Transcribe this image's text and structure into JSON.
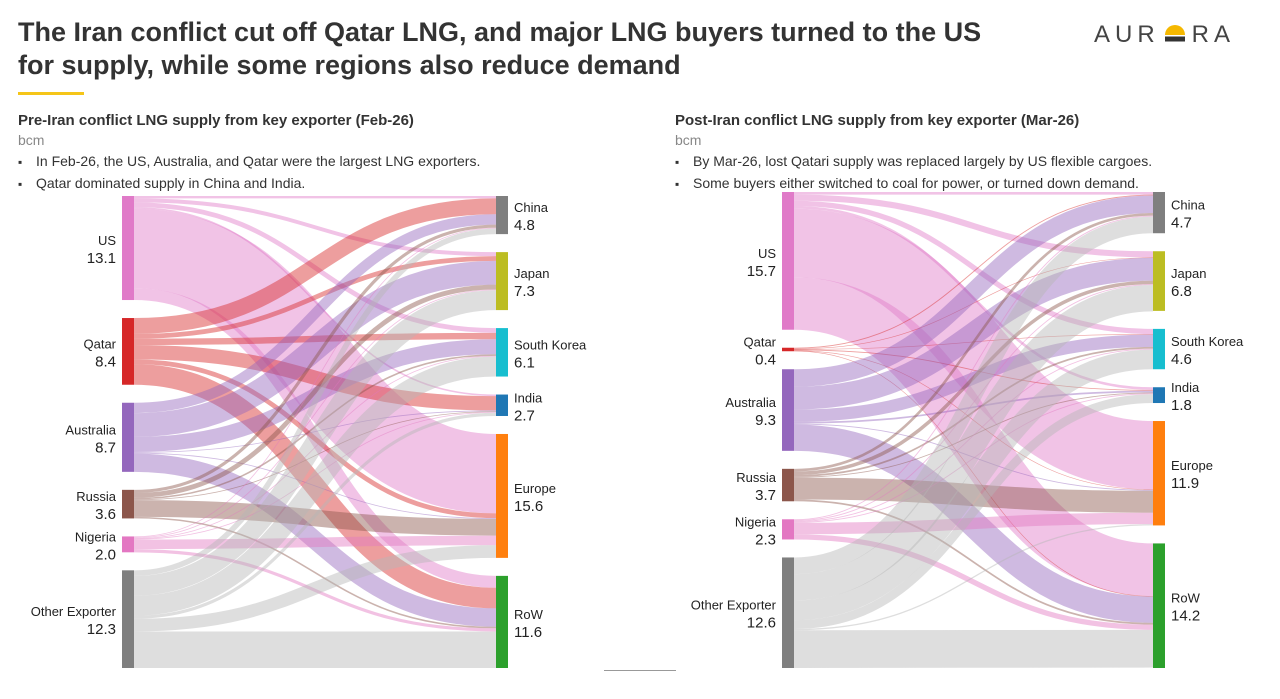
{
  "title": "The Iran conflict cut off Qatar LNG, and major LNG buyers turned to the US for supply, while some regions also reduce demand",
  "logo": {
    "letters_left": "AUR",
    "letters_right": "RA",
    "colors": {
      "sun": "#f5b800",
      "base": "#333333"
    }
  },
  "colors": {
    "US": "#e07ac8",
    "Qatar": "#d62728",
    "Australia": "#9467bd",
    "Russia": "#8c564b",
    "Nigeria": "#e377c2",
    "Other Exporter": "#7f7f7f",
    "China": "#7f7f7f",
    "Japan": "#bcbd22",
    "South Korea": "#17becf",
    "India": "#1f77b4",
    "Europe": "#ff7f0e",
    "RoW": "#2ca02c"
  },
  "chart_data": [
    {
      "type": "sankey",
      "title": "Pre-Iran conflict LNG supply from key exporter (Feb-26)",
      "unit": "bcm",
      "bullets": [
        "In Feb-26, the US, Australia, and Qatar were the largest LNG exporters.",
        "Qatar dominated supply in China and India."
      ],
      "sources": [
        {
          "name": "US",
          "value": 13.1,
          "label": "13.1"
        },
        {
          "name": "Qatar",
          "value": 8.4,
          "label": "8.4"
        },
        {
          "name": "Australia",
          "value": 8.7,
          "label": "8.7"
        },
        {
          "name": "Russia",
          "value": 3.6,
          "label": "3.6"
        },
        {
          "name": "Nigeria",
          "value": 2.0,
          "label": "2.0"
        },
        {
          "name": "Other Exporter",
          "value": 12.3,
          "label": "12.3"
        }
      ],
      "targets": [
        {
          "name": "China",
          "value": 4.8,
          "label": "4.8"
        },
        {
          "name": "Japan",
          "value": 7.3,
          "label": "7.3"
        },
        {
          "name": "South Korea",
          "value": 6.1,
          "label": "6.1"
        },
        {
          "name": "India",
          "value": 2.7,
          "label": "2.7"
        },
        {
          "name": "Europe",
          "value": 15.6,
          "label": "15.6"
        },
        {
          "name": "RoW",
          "value": 11.6,
          "label": "11.6"
        }
      ],
      "flows": [
        [
          "US",
          "China",
          0.3
        ],
        [
          "US",
          "Japan",
          0.5
        ],
        [
          "US",
          "South Korea",
          0.6
        ],
        [
          "US",
          "India",
          0.2
        ],
        [
          "US",
          "Europe",
          10.0
        ],
        [
          "US",
          "RoW",
          1.5
        ],
        [
          "Qatar",
          "China",
          2.0
        ],
        [
          "Qatar",
          "Japan",
          0.6
        ],
        [
          "Qatar",
          "South Korea",
          0.8
        ],
        [
          "Qatar",
          "India",
          1.8
        ],
        [
          "Qatar",
          "Europe",
          0.6
        ],
        [
          "Qatar",
          "RoW",
          2.6
        ],
        [
          "Australia",
          "China",
          1.3
        ],
        [
          "Australia",
          "Japan",
          3.0
        ],
        [
          "Australia",
          "South Korea",
          1.9
        ],
        [
          "Australia",
          "India",
          0.1
        ],
        [
          "Australia",
          "Europe",
          0.1
        ],
        [
          "Australia",
          "RoW",
          2.3
        ],
        [
          "Russia",
          "China",
          0.4
        ],
        [
          "Russia",
          "Japan",
          0.6
        ],
        [
          "Russia",
          "South Korea",
          0.2
        ],
        [
          "Russia",
          "India",
          0.1
        ],
        [
          "Russia",
          "Europe",
          2.1
        ],
        [
          "Russia",
          "RoW",
          0.2
        ],
        [
          "Nigeria",
          "China",
          0.1
        ],
        [
          "Nigeria",
          "Japan",
          0.1
        ],
        [
          "Nigeria",
          "South Korea",
          0.1
        ],
        [
          "Nigeria",
          "India",
          0.1
        ],
        [
          "Nigeria",
          "Europe",
          1.2
        ],
        [
          "Nigeria",
          "RoW",
          0.4
        ],
        [
          "Other Exporter",
          "China",
          0.7
        ],
        [
          "Other Exporter",
          "Japan",
          2.5
        ],
        [
          "Other Exporter",
          "South Korea",
          2.5
        ],
        [
          "Other Exporter",
          "India",
          0.4
        ],
        [
          "Other Exporter",
          "Europe",
          1.6
        ],
        [
          "Other Exporter",
          "RoW",
          4.6
        ]
      ]
    },
    {
      "type": "sankey",
      "title": "Post-Iran conflict LNG supply from key exporter (Mar-26)",
      "unit": "bcm",
      "bullets": [
        "By Mar-26, lost Qatari supply was replaced largely by US flexible cargoes.",
        "Some buyers either switched to coal for power, or turned down demand."
      ],
      "sources": [
        {
          "name": "US",
          "value": 15.7,
          "label": "15.7"
        },
        {
          "name": "Qatar",
          "value": 0.4,
          "label": "0.4"
        },
        {
          "name": "Australia",
          "value": 9.3,
          "label": "9.3"
        },
        {
          "name": "Russia",
          "value": 3.7,
          "label": "3.7"
        },
        {
          "name": "Nigeria",
          "value": 2.3,
          "label": "2.3"
        },
        {
          "name": "Other Exporter",
          "value": 12.6,
          "label": "12.6"
        }
      ],
      "targets": [
        {
          "name": "China",
          "value": 4.7,
          "label": "4.7"
        },
        {
          "name": "Japan",
          "value": 6.8,
          "label": "6.8"
        },
        {
          "name": "South Korea",
          "value": 4.6,
          "label": "4.6"
        },
        {
          "name": "India",
          "value": 1.8,
          "label": "1.8"
        },
        {
          "name": "Europe",
          "value": 11.9,
          "label": "11.9"
        },
        {
          "name": "RoW",
          "value": 14.2,
          "label": "14.2"
        }
      ],
      "flows": [
        [
          "US",
          "China",
          0.3
        ],
        [
          "US",
          "Japan",
          0.7
        ],
        [
          "US",
          "South Korea",
          0.6
        ],
        [
          "US",
          "India",
          0.3
        ],
        [
          "US",
          "Europe",
          7.8
        ],
        [
          "US",
          "RoW",
          6.0
        ],
        [
          "Qatar",
          "China",
          0.1
        ],
        [
          "Qatar",
          "Japan",
          0.05
        ],
        [
          "Qatar",
          "South Korea",
          0.05
        ],
        [
          "Qatar",
          "India",
          0.1
        ],
        [
          "Qatar",
          "Europe",
          0.05
        ],
        [
          "Qatar",
          "RoW",
          0.05
        ],
        [
          "Australia",
          "China",
          2.0
        ],
        [
          "Australia",
          "Japan",
          2.6
        ],
        [
          "Australia",
          "South Korea",
          1.4
        ],
        [
          "Australia",
          "India",
          0.2
        ],
        [
          "Australia",
          "Europe",
          0.1
        ],
        [
          "Australia",
          "RoW",
          3.0
        ],
        [
          "Russia",
          "China",
          0.3
        ],
        [
          "Russia",
          "Japan",
          0.4
        ],
        [
          "Russia",
          "South Korea",
          0.2
        ],
        [
          "Russia",
          "India",
          0.1
        ],
        [
          "Russia",
          "Europe",
          2.5
        ],
        [
          "Russia",
          "RoW",
          0.2
        ],
        [
          "Nigeria",
          "China",
          0.1
        ],
        [
          "Nigeria",
          "Japan",
          0.1
        ],
        [
          "Nigeria",
          "South Korea",
          0.1
        ],
        [
          "Nigeria",
          "India",
          0.1
        ],
        [
          "Nigeria",
          "Europe",
          1.3
        ],
        [
          "Nigeria",
          "RoW",
          0.6
        ],
        [
          "Other Exporter",
          "China",
          1.9
        ],
        [
          "Other Exporter",
          "Japan",
          3.0
        ],
        [
          "Other Exporter",
          "South Korea",
          2.25
        ],
        [
          "Other Exporter",
          "India",
          1.0
        ],
        [
          "Other Exporter",
          "Europe",
          0.15
        ],
        [
          "Other Exporter",
          "RoW",
          4.3
        ]
      ]
    }
  ]
}
